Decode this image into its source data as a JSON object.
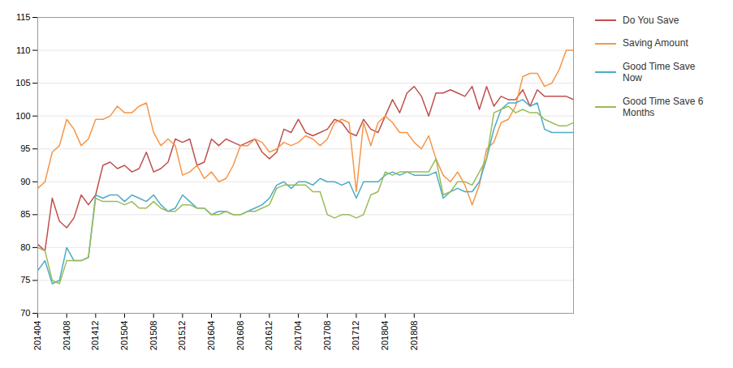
{
  "chart_data": {
    "type": "line",
    "categories": [
      "201404",
      null,
      null,
      null,
      "201408",
      null,
      null,
      null,
      "201412",
      null,
      null,
      null,
      "201504",
      null,
      null,
      null,
      "201508",
      null,
      null,
      null,
      "201512",
      null,
      null,
      null,
      "201604",
      null,
      null,
      null,
      "201608",
      null,
      null,
      null,
      "201612",
      null,
      null,
      null,
      "201704",
      null,
      null,
      null,
      "201708",
      null,
      null,
      null,
      "201712",
      null,
      null,
      null,
      "201804",
      null,
      null,
      null,
      "201808",
      null,
      null,
      null,
      null,
      null,
      null,
      null,
      null,
      null,
      null,
      null,
      null,
      null,
      null,
      null,
      null,
      null,
      null,
      null,
      null,
      null,
      null
    ],
    "series": [
      {
        "name": "Do You Save",
        "color": "#C0504D",
        "values": [
          80.5,
          79.5,
          87.5,
          84.0,
          83.0,
          84.5,
          88.0,
          86.5,
          88.0,
          92.5,
          93.0,
          92.0,
          92.5,
          91.5,
          92.0,
          94.5,
          91.5,
          92.0,
          93.0,
          96.5,
          96.0,
          96.5,
          92.5,
          93.0,
          96.5,
          95.5,
          96.5,
          96.0,
          95.5,
          96.0,
          96.5,
          94.5,
          93.5,
          94.5,
          98.0,
          97.5,
          99.5,
          97.5,
          97.0,
          97.5,
          98.0,
          99.5,
          99.0,
          97.5,
          97.0,
          99.5,
          98.0,
          97.5,
          100.0,
          102.5,
          100.5,
          103.5,
          104.5,
          103.0,
          100.0,
          103.5,
          103.5,
          104.0,
          103.5,
          103.0,
          104.5,
          101.0,
          104.5,
          101.5,
          103.0,
          102.5,
          102.5,
          104.0,
          101.5,
          104.0,
          103.0,
          103.0,
          103.0,
          103.0,
          102.5
        ]
      },
      {
        "name": "Saving Amount",
        "color": "#F79646",
        "values": [
          89.0,
          90.0,
          94.5,
          95.5,
          99.5,
          98.0,
          95.5,
          96.5,
          99.5,
          99.5,
          100.0,
          101.5,
          100.5,
          100.5,
          101.5,
          102.0,
          97.5,
          95.5,
          96.5,
          95.5,
          91.0,
          91.5,
          92.5,
          90.5,
          91.5,
          90.0,
          90.5,
          92.5,
          95.5,
          95.5,
          96.5,
          96.0,
          94.5,
          95.0,
          96.0,
          95.5,
          96.0,
          97.0,
          96.5,
          95.5,
          96.5,
          99.0,
          99.5,
          99.0,
          88.5,
          99.0,
          95.5,
          99.0,
          100.0,
          99.0,
          97.5,
          97.5,
          96.0,
          95.0,
          97.0,
          93.5,
          91.0,
          90.0,
          91.5,
          89.5,
          86.5,
          89.5,
          95.0,
          96.0,
          99.0,
          99.5,
          101.5,
          106.0,
          106.5,
          106.5,
          104.5,
          105.0,
          107.0,
          110.0,
          110.0
        ]
      },
      {
        "name": "Good Time Save\nNow",
        "color": "#4BACC6",
        "values": [
          76.5,
          78.0,
          74.5,
          75.0,
          80.0,
          78.0,
          78.0,
          78.5,
          88.0,
          87.5,
          88.0,
          88.0,
          87.0,
          88.0,
          87.5,
          87.0,
          88.0,
          86.5,
          85.5,
          86.0,
          88.0,
          87.0,
          86.0,
          86.0,
          85.0,
          85.5,
          85.5,
          85.0,
          85.0,
          85.5,
          86.0,
          86.5,
          87.5,
          89.5,
          90.0,
          89.0,
          90.0,
          90.0,
          89.5,
          90.5,
          90.0,
          90.0,
          89.5,
          90.0,
          87.5,
          90.0,
          90.0,
          90.0,
          91.0,
          91.5,
          91.0,
          91.5,
          91.0,
          91.0,
          91.0,
          91.5,
          87.5,
          88.5,
          89.0,
          88.5,
          88.5,
          90.0,
          93.5,
          98.0,
          101.0,
          102.0,
          102.0,
          102.5,
          101.5,
          102.0,
          98.0,
          97.5,
          97.5,
          97.5,
          97.5
        ]
      },
      {
        "name": "Good Time Save 6\nMonths",
        "color": "#9BBB59",
        "values": [
          80.0,
          79.5,
          75.0,
          74.5,
          78.0,
          78.0,
          78.0,
          78.5,
          87.5,
          87.0,
          87.0,
          87.0,
          86.5,
          87.0,
          86.0,
          86.0,
          87.0,
          86.0,
          85.5,
          85.5,
          86.5,
          86.5,
          86.0,
          86.0,
          85.0,
          85.0,
          85.5,
          85.0,
          85.0,
          85.5,
          85.5,
          86.0,
          86.5,
          89.0,
          89.5,
          89.5,
          89.5,
          89.5,
          88.5,
          88.5,
          85.0,
          84.5,
          85.0,
          85.0,
          84.5,
          85.0,
          88.0,
          88.5,
          91.5,
          91.0,
          91.5,
          91.5,
          91.5,
          91.5,
          91.5,
          93.5,
          88.0,
          88.5,
          90.0,
          90.0,
          89.5,
          91.5,
          93.5,
          100.5,
          101.0,
          101.5,
          100.5,
          101.0,
          100.5,
          100.5,
          99.5,
          99.0,
          98.5,
          98.5,
          99.0
        ]
      }
    ],
    "ylim": [
      70,
      115
    ],
    "yticks": [
      70,
      75,
      80,
      85,
      90,
      95,
      100,
      105,
      110,
      115
    ],
    "grid": true,
    "legend": "right"
  }
}
